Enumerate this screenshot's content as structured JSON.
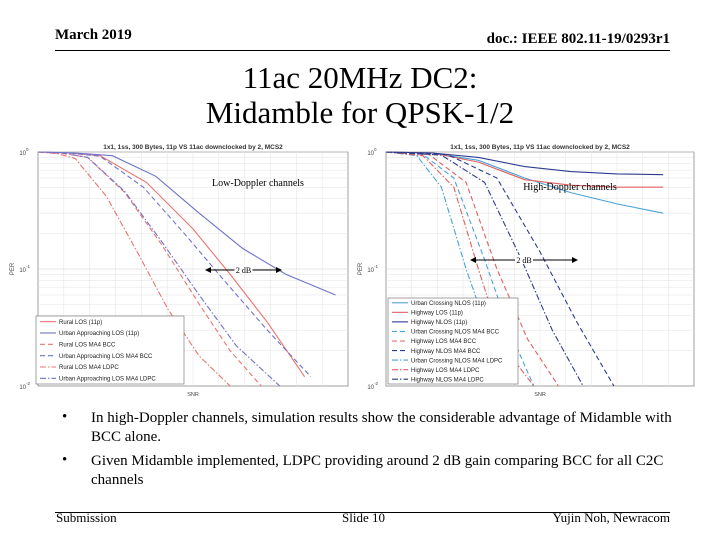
{
  "header": {
    "date": "March 2019",
    "doc_id": "doc.: IEEE 802.11-19/0293r1"
  },
  "title_lines": [
    "11ac 20MHz DC2:",
    "Midamble for QPSK-1/2"
  ],
  "charts": [
    {
      "heading": "1x1, 1ss, 300 Bytes, 11p VS 11ac downclocked by 2, MCS2",
      "ylabel": "PER",
      "xlabel": "SNR",
      "yticks": [
        "10",
        "10",
        "10"
      ],
      "yexp": [
        "0",
        "-1",
        "-2"
      ],
      "callout": "Low-Doppler channels",
      "gain_label": "2 dB",
      "legend": [
        {
          "label": "Rural LOS (11p)",
          "color": "#e8756f",
          "dash": "solid"
        },
        {
          "label": "Urban Approaching LOS (11p)",
          "color": "#6f72c9",
          "dash": "solid"
        },
        {
          "label": "Rural LOS MA4 BCC",
          "color": "#e8756f",
          "dash": "dash"
        },
        {
          "label": "Urban Approaching LOS MA4 BCC",
          "color": "#6f72c9",
          "dash": "dash"
        },
        {
          "label": "Rural LOS MA4 LDPC",
          "color": "#e8756f",
          "dash": "dashdot"
        },
        {
          "label": "Urban Approaching LOS MA4 LDPC",
          "color": "#6f72c9",
          "dash": "dashdot"
        }
      ]
    },
    {
      "heading": "1x1, 1ss, 300 Bytes, 11p VS 11ac downclocked by 2, MCS2",
      "ylabel": "PER",
      "xlabel": "SNR",
      "yticks": [
        "10",
        "10",
        "10"
      ],
      "yexp": [
        "0",
        "-1",
        "-2"
      ],
      "callout": "High-Doppler channels",
      "gain_label": "2 dB",
      "legend": [
        {
          "label": "Urban Crossing NLOS (11p)",
          "color": "#4aa3d9",
          "dash": "solid"
        },
        {
          "label": "Highway LOS (11p)",
          "color": "#e06060",
          "dash": "solid"
        },
        {
          "label": "Highway NLOS (11p)",
          "color": "#2c3d8f",
          "dash": "solid"
        },
        {
          "label": "Urban Crossing NLOS MA4 BCC",
          "color": "#4aa3d9",
          "dash": "dash"
        },
        {
          "label": "Highway LOS MA4 BCC",
          "color": "#e06060",
          "dash": "dash"
        },
        {
          "label": "Highway NLOS MA4 BCC",
          "color": "#2c3d8f",
          "dash": "dash"
        },
        {
          "label": "Urban Crossing NLOS MA4 LDPC",
          "color": "#4aa3d9",
          "dash": "dashdot"
        },
        {
          "label": "Highway LOS MA4 LDPC",
          "color": "#e06060",
          "dash": "dashdot"
        },
        {
          "label": "Highway NLOS MA4 LDPC",
          "color": "#2c3d8f",
          "dash": "dashdot"
        }
      ]
    }
  ],
  "chart_data": [
    {
      "type": "line",
      "title": "1x1, 1ss, 300 Bytes, 11p VS 11ac downclocked by 2, MCS2",
      "xlabel": "SNR",
      "ylabel": "PER",
      "yscale": "log",
      "ylim": [
        0.01,
        1
      ],
      "xlim": [
        0,
        1
      ],
      "grid": true,
      "legend_position": "bottom-left",
      "series": [
        {
          "name": "Rural LOS (11p)",
          "x": [
            0,
            0.1,
            0.2,
            0.35,
            0.5,
            0.62,
            0.74,
            0.86
          ],
          "y": [
            1,
            0.98,
            0.93,
            0.55,
            0.22,
            0.09,
            0.035,
            0.012
          ]
        },
        {
          "name": "Urban Approaching LOS (11p)",
          "x": [
            0,
            0.12,
            0.24,
            0.38,
            0.52,
            0.66,
            0.8,
            0.96
          ],
          "y": [
            1,
            0.98,
            0.93,
            0.62,
            0.3,
            0.15,
            0.09,
            0.06
          ]
        },
        {
          "name": "Rural LOS MA4 BCC",
          "x": [
            0,
            0.08,
            0.16,
            0.28,
            0.4,
            0.52,
            0.62,
            0.72
          ],
          "y": [
            1,
            0.97,
            0.9,
            0.45,
            0.16,
            0.05,
            0.02,
            0.01
          ]
        },
        {
          "name": "Urban Approaching LOS MA4 BCC",
          "x": [
            0,
            0.1,
            0.2,
            0.34,
            0.48,
            0.6,
            0.74,
            0.88
          ],
          "y": [
            1,
            0.98,
            0.92,
            0.5,
            0.19,
            0.08,
            0.03,
            0.012
          ]
        },
        {
          "name": "Rural LOS MA4 LDPC",
          "x": [
            0,
            0.06,
            0.12,
            0.22,
            0.32,
            0.42,
            0.52,
            0.62
          ],
          "y": [
            1,
            0.97,
            0.88,
            0.42,
            0.14,
            0.045,
            0.018,
            0.01
          ]
        },
        {
          "name": "Urban Approaching LOS MA4 LDPC",
          "x": [
            0,
            0.08,
            0.16,
            0.28,
            0.4,
            0.52,
            0.64,
            0.78
          ],
          "y": [
            1,
            0.98,
            0.9,
            0.46,
            0.17,
            0.06,
            0.022,
            0.01
          ]
        }
      ]
    },
    {
      "type": "line",
      "title": "1x1, 1ss, 300 Bytes, 11p VS 11ac downclocked by 2, MCS2",
      "xlabel": "SNR",
      "ylabel": "PER",
      "yscale": "log",
      "ylim": [
        0.01,
        1
      ],
      "xlim": [
        0,
        1
      ],
      "grid": true,
      "legend_position": "bottom-left",
      "series": [
        {
          "name": "Urban Crossing NLOS (11p)",
          "x": [
            0,
            0.15,
            0.3,
            0.45,
            0.6,
            0.75,
            0.9
          ],
          "y": [
            1,
            0.98,
            0.85,
            0.6,
            0.45,
            0.36,
            0.3
          ]
        },
        {
          "name": "Highway LOS (11p)",
          "x": [
            0,
            0.15,
            0.3,
            0.45,
            0.6,
            0.75,
            0.9
          ],
          "y": [
            1,
            0.98,
            0.82,
            0.58,
            0.52,
            0.5,
            0.5
          ]
        },
        {
          "name": "Highway NLOS (11p)",
          "x": [
            0,
            0.15,
            0.3,
            0.45,
            0.6,
            0.75,
            0.9
          ],
          "y": [
            1,
            0.98,
            0.9,
            0.75,
            0.68,
            0.65,
            0.64
          ]
        },
        {
          "name": "Urban Crossing NLOS MA4 BCC",
          "x": [
            0,
            0.12,
            0.22,
            0.32,
            0.4,
            0.48
          ],
          "y": [
            1,
            0.95,
            0.6,
            0.12,
            0.03,
            0.01
          ]
        },
        {
          "name": "Highway LOS MA4 BCC",
          "x": [
            0,
            0.14,
            0.26,
            0.36,
            0.46,
            0.56
          ],
          "y": [
            1,
            0.95,
            0.55,
            0.1,
            0.025,
            0.01
          ]
        },
        {
          "name": "Highway NLOS MA4 BCC",
          "x": [
            0,
            0.2,
            0.36,
            0.5,
            0.62,
            0.74
          ],
          "y": [
            1,
            0.95,
            0.6,
            0.14,
            0.035,
            0.01
          ]
        },
        {
          "name": "Urban Crossing NLOS MA4 LDPC",
          "x": [
            0,
            0.1,
            0.18,
            0.26,
            0.34,
            0.42
          ],
          "y": [
            1,
            0.93,
            0.5,
            0.1,
            0.025,
            0.01
          ]
        },
        {
          "name": "Highway LOS MA4 LDPC",
          "x": [
            0,
            0.12,
            0.22,
            0.3,
            0.38,
            0.48
          ],
          "y": [
            1,
            0.93,
            0.5,
            0.1,
            0.022,
            0.01
          ]
        },
        {
          "name": "Highway NLOS MA4 LDPC",
          "x": [
            0,
            0.18,
            0.32,
            0.44,
            0.54,
            0.64
          ],
          "y": [
            1,
            0.94,
            0.55,
            0.12,
            0.03,
            0.01
          ]
        }
      ]
    }
  ],
  "bullets": [
    "In high-Doppler channels, simulation results show the considerable advantage of Midamble with BCC alone.",
    "Given Midamble implemented, LDPC providing around 2 dB gain comparing BCC for all C2C channels"
  ],
  "footer": {
    "left": "Submission",
    "center": "Slide 10",
    "right": "Yujin Noh, Newracom"
  }
}
